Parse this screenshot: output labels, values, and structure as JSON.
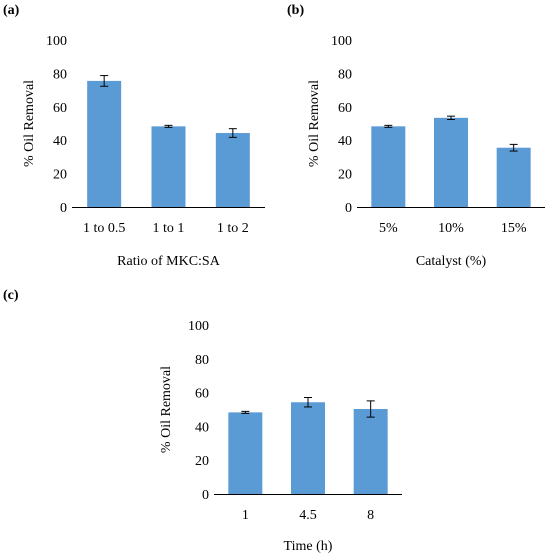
{
  "figure": {
    "panel_labels": [
      "(a)",
      "(b)",
      "(c)"
    ]
  },
  "colors": {
    "bar": "#5B9BD5",
    "axis": "#000000",
    "error_bar": "#000000"
  },
  "chart_data": [
    {
      "type": "bar",
      "panel": "(a)",
      "categories": [
        "1 to 0.5",
        "1 to 1",
        "1 to 2"
      ],
      "values": [
        75.5,
        48.3,
        44.3
      ],
      "errors": [
        3.2,
        0.6,
        2.6
      ],
      "xlabel": "Ratio of MKC:SA",
      "ylabel": "% Oil Removal",
      "yticks": [
        "0",
        "20",
        "40",
        "60",
        "80",
        "100"
      ],
      "ylim": [
        0,
        100
      ],
      "grid": false
    },
    {
      "type": "bar",
      "panel": "(b)",
      "categories": [
        "5%",
        "10%",
        "15%"
      ],
      "values": [
        48.3,
        53.4,
        35.5
      ],
      "errors": [
        0.6,
        1.0,
        2.0
      ],
      "xlabel": "Catalyst (%)",
      "ylabel": "% Oil Removal",
      "yticks": [
        "0",
        "20",
        "40",
        "60",
        "80",
        "100"
      ],
      "ylim": [
        0,
        100
      ],
      "grid": false
    },
    {
      "type": "bar",
      "panel": "(c)",
      "categories": [
        "1",
        "4.5",
        "8"
      ],
      "values": [
        48.3,
        54.3,
        50.3
      ],
      "errors": [
        0.6,
        2.8,
        4.8
      ],
      "xlabel": "Time (h)",
      "ylabel": "% Oil Removal",
      "yticks": [
        "0",
        "20",
        "40",
        "60",
        "80",
        "100"
      ],
      "ylim": [
        0,
        100
      ],
      "grid": false
    }
  ]
}
